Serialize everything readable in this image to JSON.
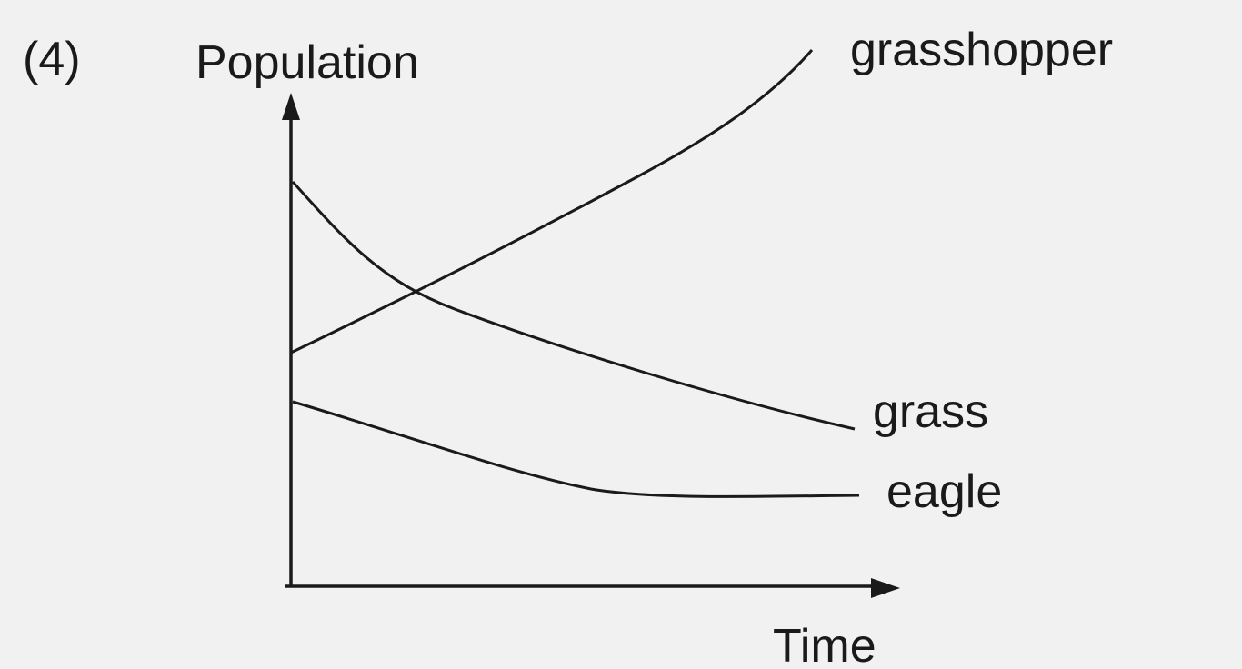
{
  "label": "(4)",
  "y_axis": "Population",
  "x_axis": "Time",
  "curves": [
    {
      "label": "grasshopper"
    },
    {
      "label": "grass"
    },
    {
      "label": "eagle"
    }
  ]
}
